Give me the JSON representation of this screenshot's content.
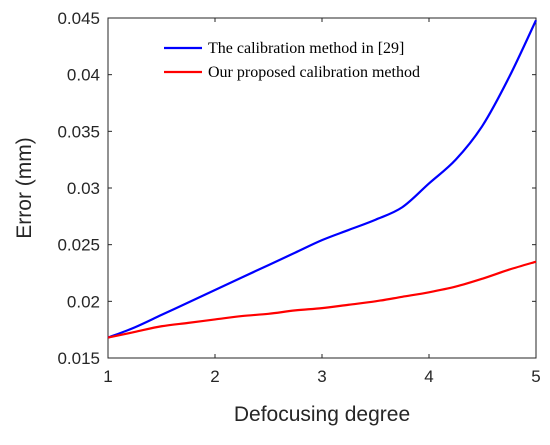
{
  "chart_data": {
    "type": "line",
    "title": "",
    "xlabel": "Defocusing degree",
    "ylabel": "Error (mm)",
    "xlim": [
      1,
      5
    ],
    "ylim": [
      0.015,
      0.045
    ],
    "x_ticks": [
      "1",
      "2",
      "3",
      "4",
      "5"
    ],
    "y_ticks": [
      "0.015",
      "0.02",
      "0.025",
      "0.03",
      "0.035",
      "0.04",
      "0.045"
    ],
    "grid": false,
    "legend_position": "top-right",
    "series": [
      {
        "name": "The calibration method in [29]",
        "color": "#0000ff",
        "x": [
          1,
          1.25,
          1.5,
          1.75,
          2,
          2.25,
          2.5,
          2.75,
          3,
          3.25,
          3.5,
          3.75,
          4,
          4.25,
          4.5,
          4.75,
          5
        ],
        "y": [
          0.0168,
          0.0177,
          0.0188,
          0.0199,
          0.021,
          0.0221,
          0.0232,
          0.0243,
          0.0254,
          0.0263,
          0.0272,
          0.0283,
          0.0304,
          0.0325,
          0.0355,
          0.0398,
          0.0448
        ]
      },
      {
        "name": "Our proposed calibration method",
        "color": "#ff0000",
        "x": [
          1,
          1.25,
          1.5,
          1.75,
          2,
          2.25,
          2.5,
          2.75,
          3,
          3.25,
          3.5,
          3.75,
          4,
          4.25,
          4.5,
          4.75,
          5
        ],
        "y": [
          0.0168,
          0.0173,
          0.0178,
          0.0181,
          0.0184,
          0.0187,
          0.0189,
          0.0192,
          0.0194,
          0.0197,
          0.02,
          0.0204,
          0.0208,
          0.0213,
          0.022,
          0.0228,
          0.0235
        ]
      }
    ]
  }
}
